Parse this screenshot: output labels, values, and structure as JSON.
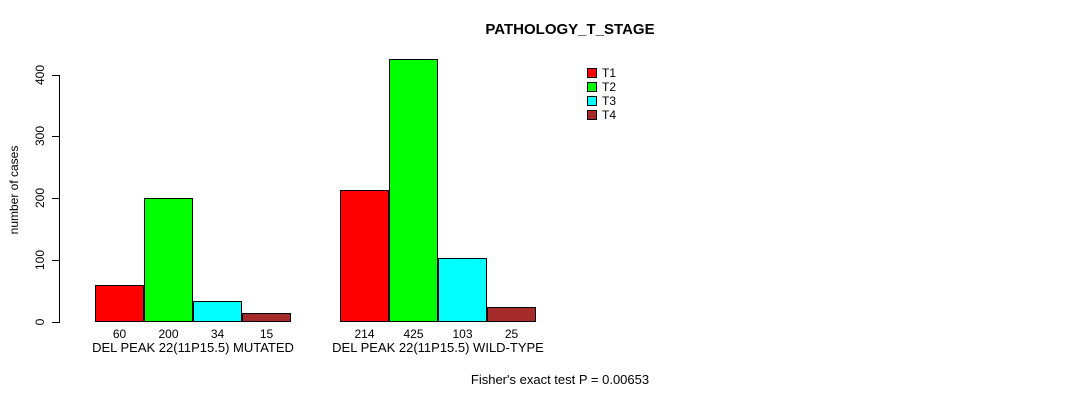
{
  "chart_data": {
    "type": "bar",
    "title": "PATHOLOGY_T_STAGE",
    "ylabel": "number of cases",
    "ylim": [
      0,
      400
    ],
    "yticks": [
      0,
      100,
      200,
      300,
      400
    ],
    "grid": false,
    "legend_position": "top-right",
    "series": [
      {
        "name": "T1",
        "color": "#ff0000"
      },
      {
        "name": "T2",
        "color": "#00ff00"
      },
      {
        "name": "T3",
        "color": "#00ffff"
      },
      {
        "name": "T4",
        "color": "#a52a2a"
      }
    ],
    "groups": [
      {
        "label": "DEL PEAK 22(11P15.5) MUTATED",
        "values": [
          60,
          200,
          34,
          15
        ]
      },
      {
        "label": "DEL PEAK 22(11P15.5) WILD-TYPE",
        "values": [
          214,
          425,
          103,
          25
        ]
      }
    ],
    "annotation": "Fisher's exact test P = 0.00653"
  }
}
